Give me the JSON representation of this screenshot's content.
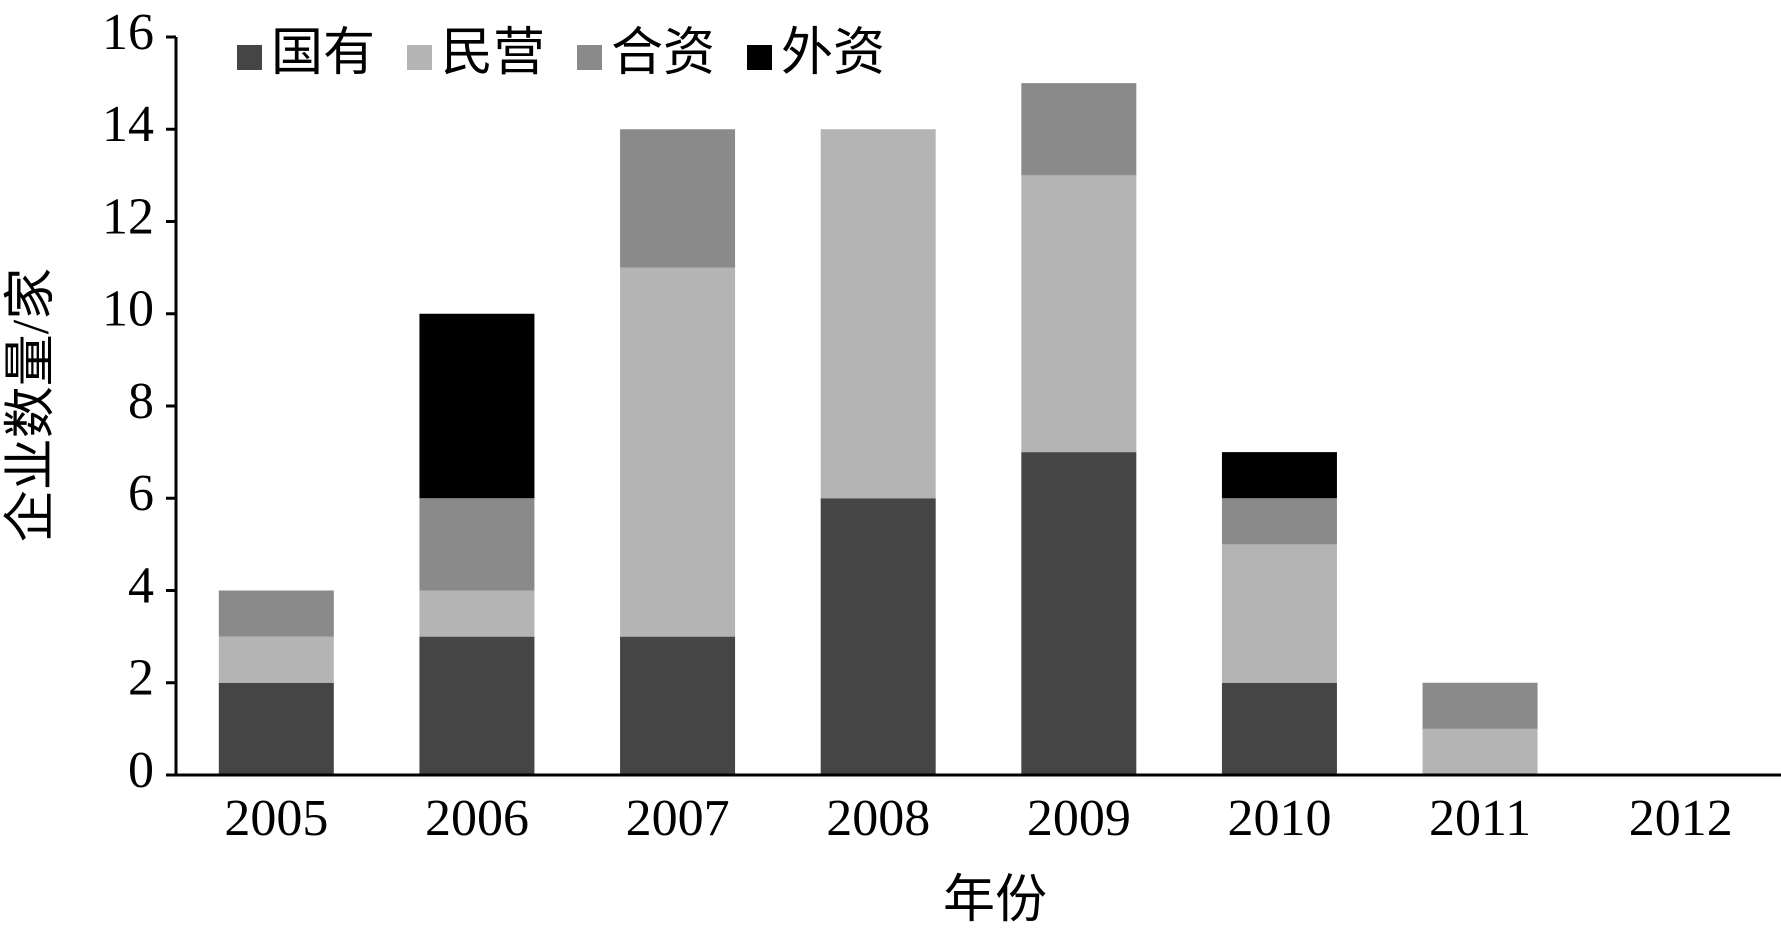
{
  "chart_data": {
    "type": "stacked-bar",
    "xlabel": "年份",
    "ylabel": "企业数量/家",
    "categories": [
      "2005",
      "2006",
      "2007",
      "2008",
      "2009",
      "2010",
      "2011",
      "2012"
    ],
    "series": [
      {
        "name": "国有",
        "color": "#454545",
        "values": [
          2,
          3,
          3,
          6,
          7,
          2,
          0,
          0
        ]
      },
      {
        "name": "民营",
        "color": "#b4b4b4",
        "values": [
          1,
          1,
          8,
          8,
          6,
          3,
          1,
          0
        ]
      },
      {
        "name": "合资",
        "color": "#8a8a8a",
        "values": [
          1,
          2,
          3,
          0,
          2,
          1,
          1,
          0
        ]
      },
      {
        "name": "外资",
        "color": "#000000",
        "values": [
          0,
          4,
          0,
          0,
          0,
          1,
          0,
          0
        ]
      }
    ],
    "ylim": [
      0,
      16
    ],
    "yticks": [
      0,
      2,
      4,
      6,
      8,
      10,
      12,
      14,
      16
    ],
    "grid": false,
    "legend": "top-left"
  }
}
